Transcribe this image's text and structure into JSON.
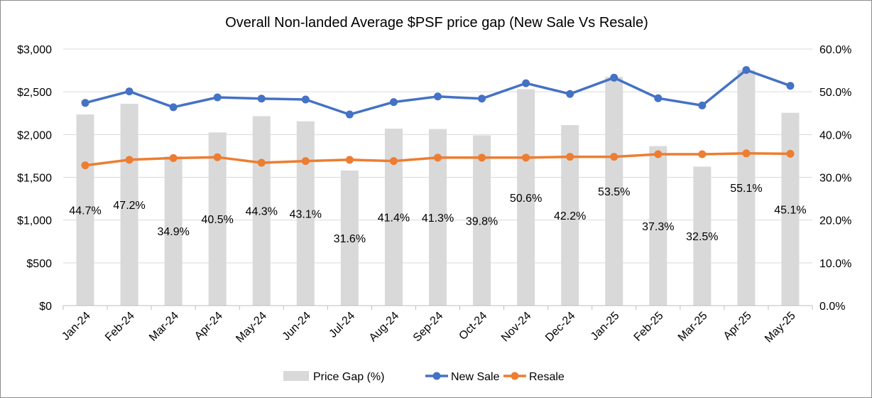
{
  "chart_data": {
    "type": "bar+line",
    "title": "Overall Non-landed Average $PSF price gap (New Sale Vs Resale)",
    "categories": [
      "Jan-24",
      "Feb-24",
      "Mar-24",
      "Apr-24",
      "May-24",
      "Jun-24",
      "Jul-24",
      "Aug-24",
      "Sep-24",
      "Oct-24",
      "Nov-24",
      "Dec-24",
      "Jan-25",
      "Feb-25",
      "Mar-25",
      "Apr-25",
      "May-25"
    ],
    "left_axis": {
      "ticks": [
        "$0",
        "$500",
        "$1,000",
        "$1,500",
        "$2,000",
        "$2,500",
        "$3,000"
      ],
      "ylim": [
        0,
        3000
      ]
    },
    "right_axis": {
      "ticks": [
        "0.0%",
        "10.0%",
        "20.0%",
        "30.0%",
        "40.0%",
        "50.0%",
        "60.0%"
      ],
      "ylim": [
        0,
        60
      ]
    },
    "grid": "horizontal",
    "legend_position": "bottom",
    "series": [
      {
        "name": "Price Gap (%)",
        "kind": "bar",
        "axis": "right",
        "color": "#d9d9d9",
        "values": [
          44.7,
          47.2,
          34.9,
          40.5,
          44.3,
          43.1,
          31.6,
          41.4,
          41.3,
          39.8,
          50.6,
          42.2,
          53.5,
          37.3,
          32.5,
          55.1,
          45.1
        ],
        "labels": [
          "44.7%",
          "47.2%",
          "34.9%",
          "40.5%",
          "44.3%",
          "43.1%",
          "31.6%",
          "41.4%",
          "41.3%",
          "39.8%",
          "50.6%",
          "42.2%",
          "53.5%",
          "37.3%",
          "32.5%",
          "55.1%",
          "45.1%"
        ]
      },
      {
        "name": "New Sale",
        "kind": "line",
        "axis": "left",
        "color": "#4472c4",
        "values": [
          2370,
          2505,
          2320,
          2435,
          2420,
          2410,
          2235,
          2380,
          2445,
          2420,
          2600,
          2475,
          2665,
          2425,
          2340,
          2755,
          2570
        ]
      },
      {
        "name": "Resale",
        "kind": "line",
        "axis": "left",
        "color": "#ed7d31",
        "values": [
          1640,
          1705,
          1725,
          1735,
          1670,
          1690,
          1705,
          1690,
          1730,
          1730,
          1730,
          1740,
          1740,
          1770,
          1770,
          1780,
          1775
        ]
      }
    ]
  }
}
